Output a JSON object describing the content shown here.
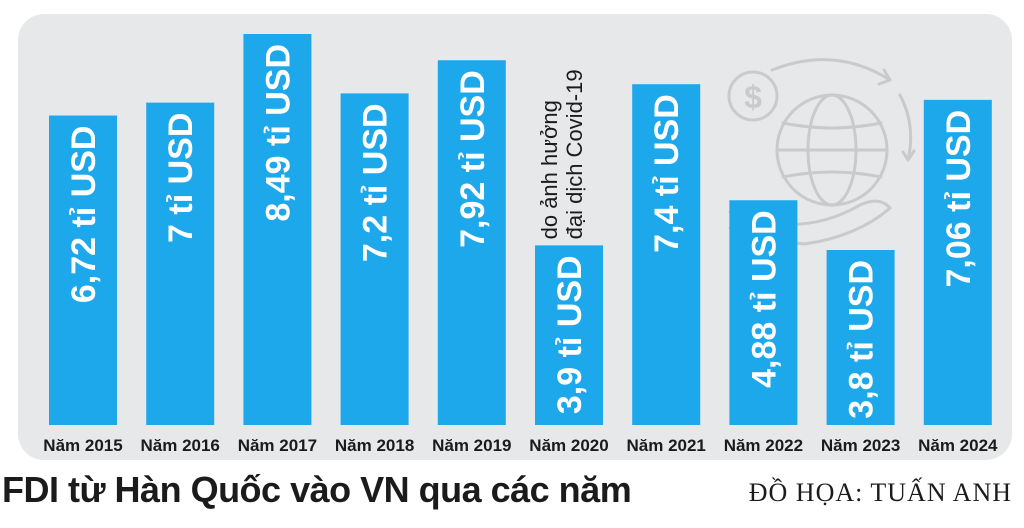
{
  "chart_data": {
    "type": "bar",
    "title": "FDI từ Hàn Quốc vào VN qua các năm",
    "categories": [
      "Năm 2015",
      "Năm 2016",
      "Năm 2017",
      "Năm 2018",
      "Năm 2019",
      "Năm 2020",
      "Năm 2021",
      "Năm 2022",
      "Năm 2023",
      "Năm 2024"
    ],
    "values": [
      6.72,
      7,
      8.49,
      7.2,
      7.92,
      3.9,
      7.4,
      4.88,
      3.8,
      7.06
    ],
    "data_labels": [
      "6,72 tỉ USD",
      "7 tỉ USD",
      "8,49 tỉ USD",
      "7,2 tỉ USD",
      "7,92 tỉ USD",
      "3,9 tỉ USD",
      "7,4 tỉ USD",
      "4,88 tỉ USD",
      "3,8 tỉ USD",
      "7,06 tỉ USD"
    ],
    "annotation": {
      "category": "Năm 2020",
      "lines": [
        "do ảnh hưởng",
        "đại dịch Covid-19"
      ]
    },
    "unit": "tỉ USD",
    "bar_color": "#1ea8ec",
    "label_color": "#ffffff",
    "background_color": "#e7e8e9",
    "decoration_icon": "globe-dollar-hand-icon",
    "grid": false,
    "legend": "none"
  },
  "credit": "ĐỒ HỌA: TUẤN ANH"
}
